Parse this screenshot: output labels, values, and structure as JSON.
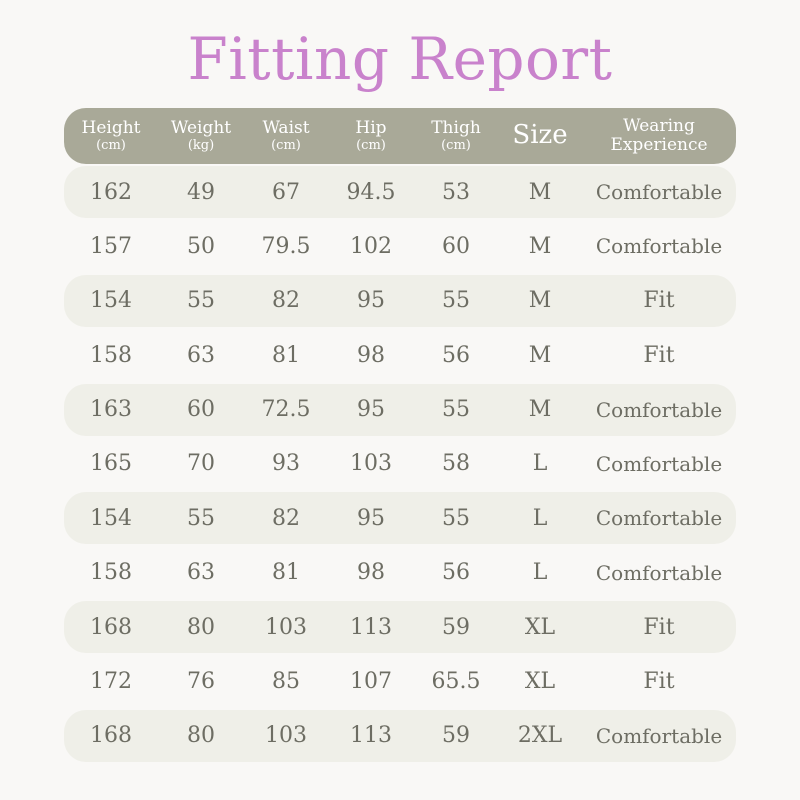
{
  "title": "Fitting Report",
  "headers": [
    {
      "label": "Height",
      "unit": "(cm)"
    },
    {
      "label": "Weight",
      "unit": "(kg)"
    },
    {
      "label": "Waist",
      "unit": "(cm)"
    },
    {
      "label": "Hip",
      "unit": "(cm)"
    },
    {
      "label": "Thigh",
      "unit": "(cm)"
    },
    {
      "label": "Size"
    },
    {
      "label": "Wearing",
      "label2": "Experience"
    }
  ],
  "rows": [
    {
      "height": "162",
      "weight": "49",
      "waist": "67",
      "hip": "94.5",
      "thigh": "53",
      "size": "M",
      "experience": "Comfortable"
    },
    {
      "height": "157",
      "weight": "50",
      "waist": "79.5",
      "hip": "102",
      "thigh": "60",
      "size": "M",
      "experience": "Comfortable"
    },
    {
      "height": "154",
      "weight": "55",
      "waist": "82",
      "hip": "95",
      "thigh": "55",
      "size": "M",
      "experience": "Fit"
    },
    {
      "height": "158",
      "weight": "63",
      "waist": "81",
      "hip": "98",
      "thigh": "56",
      "size": "M",
      "experience": "Fit"
    },
    {
      "height": "163",
      "weight": "60",
      "waist": "72.5",
      "hip": "95",
      "thigh": "55",
      "size": "M",
      "experience": "Comfortable"
    },
    {
      "height": "165",
      "weight": "70",
      "waist": "93",
      "hip": "103",
      "thigh": "58",
      "size": "L",
      "experience": "Comfortable"
    },
    {
      "height": "154",
      "weight": "55",
      "waist": "82",
      "hip": "95",
      "thigh": "55",
      "size": "L",
      "experience": "Comfortable"
    },
    {
      "height": "158",
      "weight": "63",
      "waist": "81",
      "hip": "98",
      "thigh": "56",
      "size": "L",
      "experience": "Comfortable"
    },
    {
      "height": "168",
      "weight": "80",
      "waist": "103",
      "hip": "113",
      "thigh": "59",
      "size": "XL",
      "experience": "Fit"
    },
    {
      "height": "172",
      "weight": "76",
      "waist": "85",
      "hip": "107",
      "thigh": "65.5",
      "size": "XL",
      "experience": "Fit"
    },
    {
      "height": "168",
      "weight": "80",
      "waist": "103",
      "hip": "113",
      "thigh": "59",
      "size": "2XL",
      "experience": "Comfortable"
    }
  ],
  "colors": {
    "title": "#c982cc",
    "header_bg": "#a9a998",
    "header_text": "#ffffff",
    "row_shade": "#efefe8",
    "cell_text": "#6d6d63",
    "background": "#f9f8f6"
  }
}
